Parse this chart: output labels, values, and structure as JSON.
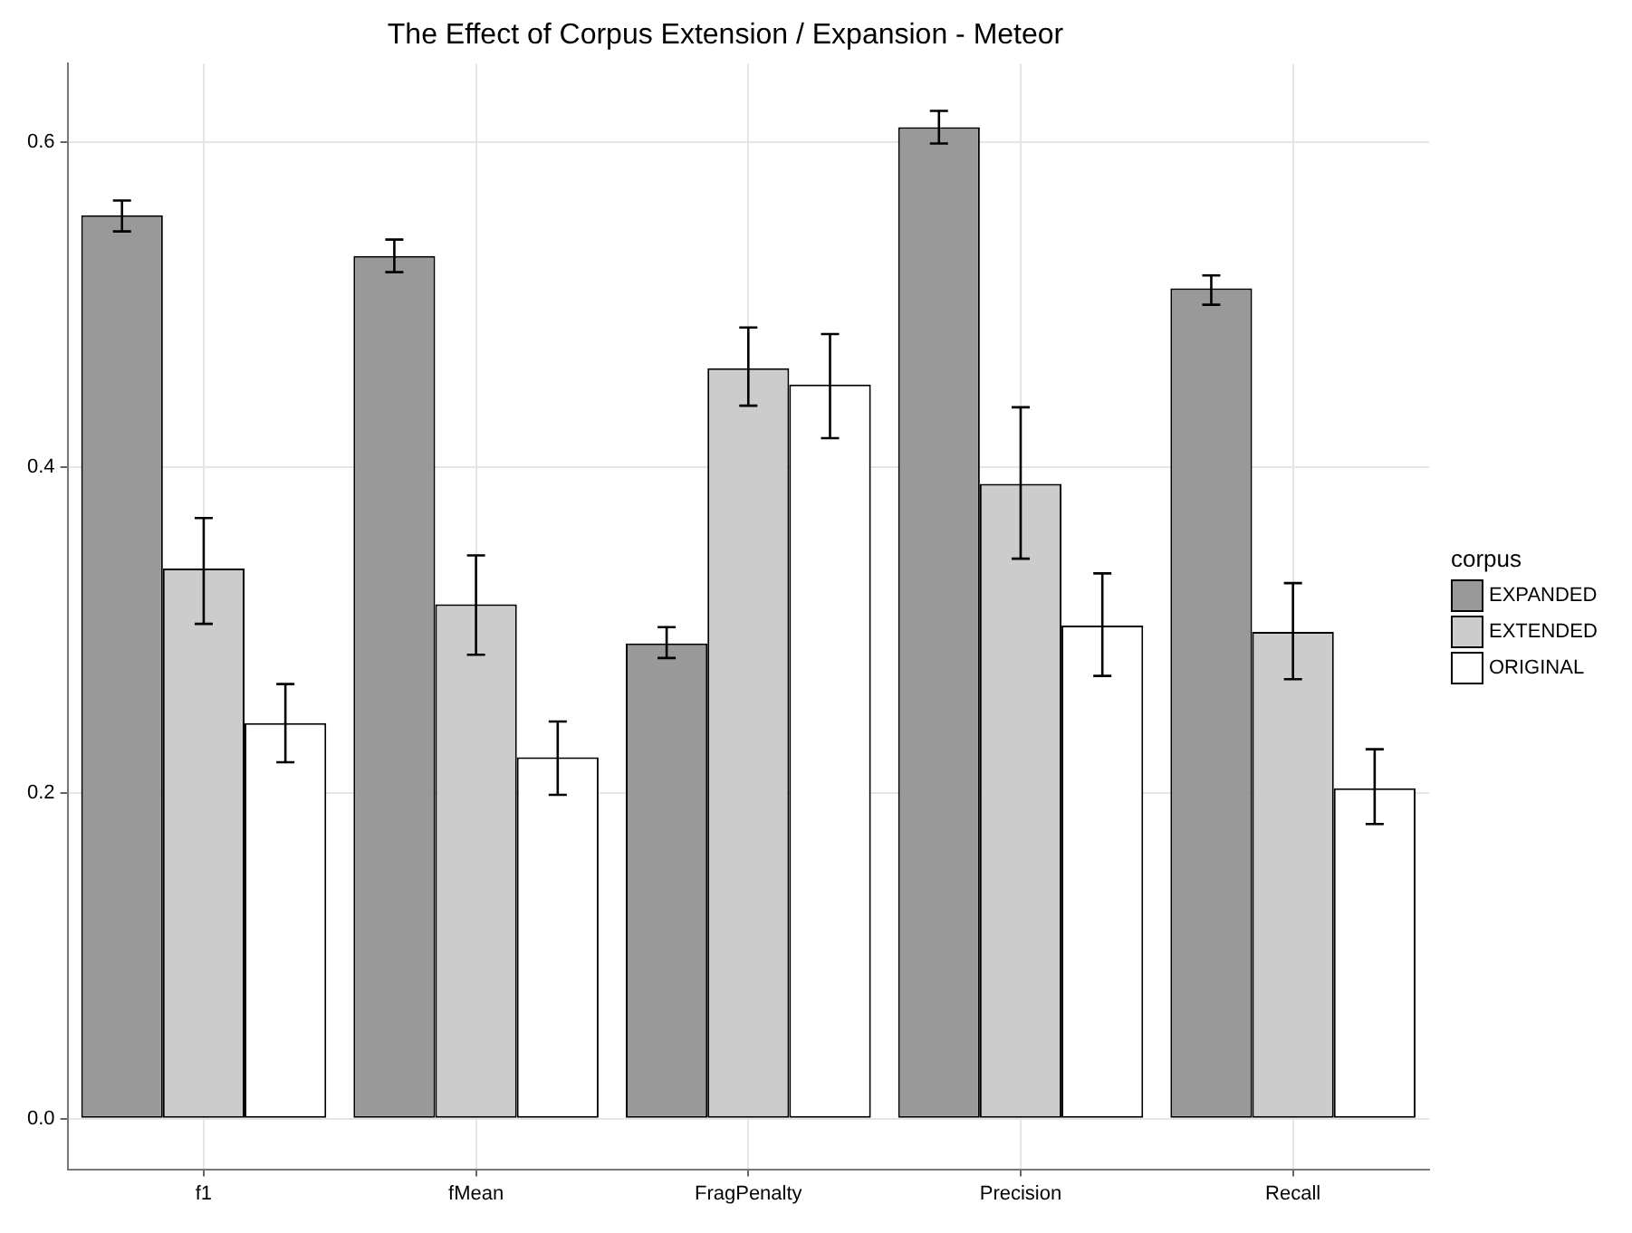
{
  "chart_data": {
    "type": "bar",
    "title": "The Effect of Corpus Extension / Expansion - Meteor",
    "legend_title": "corpus",
    "categories": [
      "f1",
      "fMean",
      "FragPenalty",
      "Precision",
      "Recall"
    ],
    "series": [
      {
        "name": "EXPANDED",
        "color": "#999999",
        "values": [
          0.555,
          0.53,
          0.292,
          0.609,
          0.51
        ],
        "errors": [
          [
            0.545,
            0.564
          ],
          [
            0.52,
            0.54
          ],
          [
            0.283,
            0.302
          ],
          [
            0.599,
            0.619
          ],
          [
            0.5,
            0.518
          ]
        ]
      },
      {
        "name": "EXTENDED",
        "color": "#cccccc",
        "values": [
          0.338,
          0.316,
          0.461,
          0.39,
          0.299
        ],
        "errors": [
          [
            0.304,
            0.369
          ],
          [
            0.285,
            0.346
          ],
          [
            0.438,
            0.486
          ],
          [
            0.344,
            0.437
          ],
          [
            0.27,
            0.329
          ]
        ]
      },
      {
        "name": "ORIGINAL",
        "color": "#ffffff",
        "values": [
          0.243,
          0.222,
          0.451,
          0.303,
          0.203
        ],
        "errors": [
          [
            0.219,
            0.267
          ],
          [
            0.199,
            0.244
          ],
          [
            0.418,
            0.482
          ],
          [
            0.272,
            0.335
          ],
          [
            0.181,
            0.227
          ]
        ]
      }
    ],
    "ylim": [
      -0.031,
      0.648
    ],
    "yticks": [
      {
        "value": 0,
        "label": "0.0"
      },
      0.2,
      0.4,
      0.6
    ],
    "grid": true,
    "legend": "right"
  }
}
